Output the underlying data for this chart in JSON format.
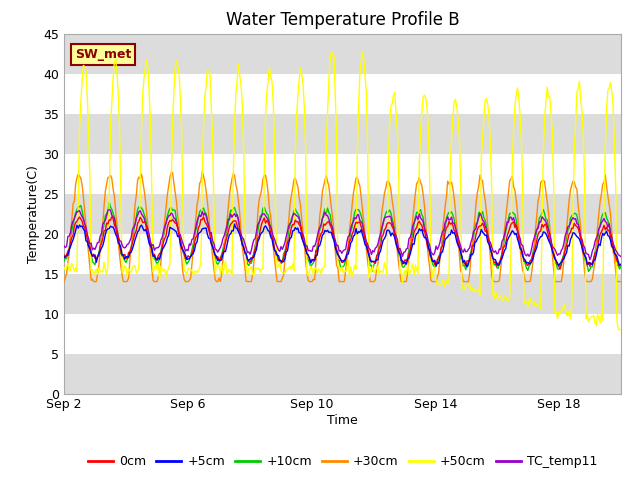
{
  "title": "Water Temperature Profile B",
  "xlabel": "Time",
  "ylabel": "Temperature(C)",
  "ylim": [
    0,
    45
  ],
  "yticks": [
    0,
    5,
    10,
    15,
    20,
    25,
    30,
    35,
    40,
    45
  ],
  "xtick_labels": [
    "Sep 2",
    "Sep 6",
    "Sep 10",
    "Sep 14",
    "Sep 18"
  ],
  "xtick_positions": [
    0,
    4,
    8,
    12,
    16
  ],
  "annotation_text": "SW_met",
  "annotation_color": "#8B0000",
  "annotation_bg": "#FFFF99",
  "annotation_border": "#8B0000",
  "series_colors": {
    "0cm": "#FF0000",
    "+5cm": "#0000FF",
    "+10cm": "#00CC00",
    "+30cm": "#FF8C00",
    "+50cm": "#FFFF00",
    "TC_temp11": "#9900CC"
  },
  "band_colors": [
    "#DCDCDC",
    "#FFFFFF"
  ],
  "title_fontsize": 12,
  "axis_label_fontsize": 9,
  "tick_fontsize": 9,
  "legend_fontsize": 9
}
